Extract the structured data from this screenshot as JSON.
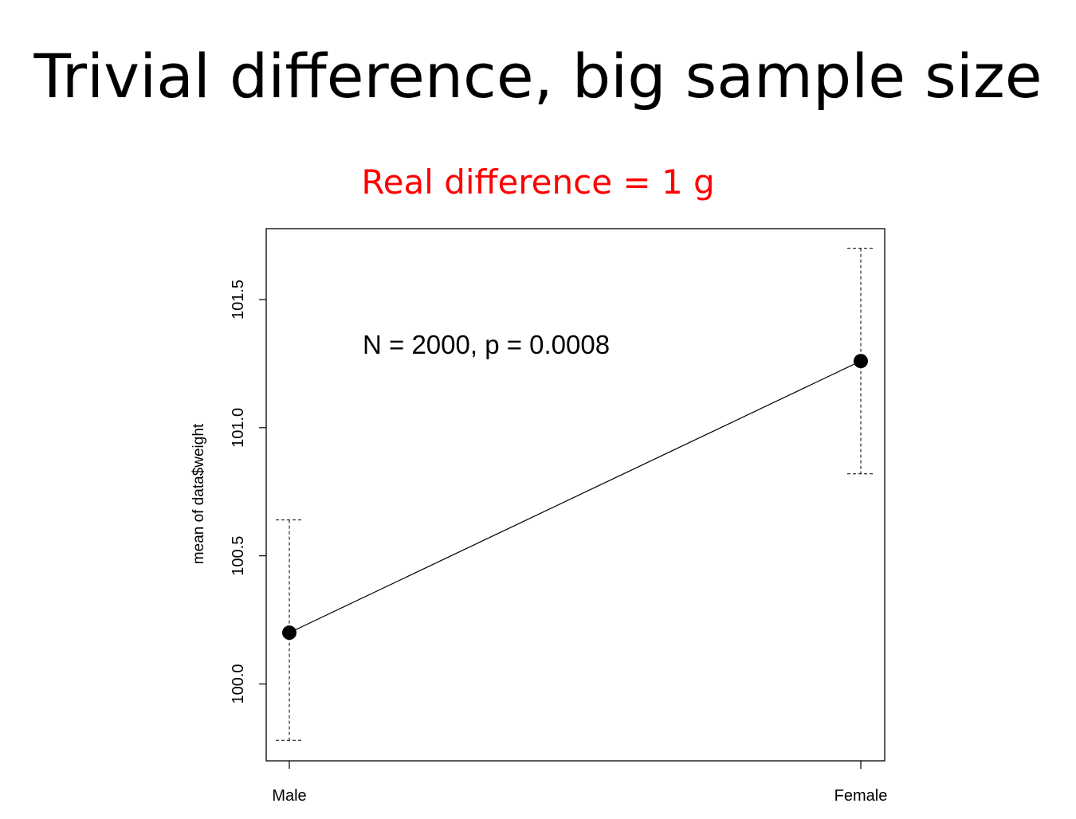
{
  "slide": {
    "title": "Trivial difference, big sample size"
  },
  "chart_data": {
    "type": "line",
    "subtitle": "Real difference = 1 g",
    "subtitle_color": "#ff0000",
    "annotation": "N = 2000, p = 0.0008",
    "ylabel": "mean of data$weight",
    "xlabel": "",
    "categories": [
      "Male",
      "Female"
    ],
    "series": [
      {
        "values": [
          100.2,
          101.26
        ],
        "ci_lower": [
          99.78,
          100.82
        ],
        "ci_upper": [
          100.64,
          101.7
        ]
      }
    ],
    "yticks": [
      100.0,
      100.5,
      101.0,
      101.5
    ],
    "ytick_labels": [
      "100.0",
      "100.5",
      "101.0",
      "101.5"
    ],
    "ylim": [
      99.7,
      101.78
    ],
    "grid": false,
    "error_bar_style": "dashed"
  }
}
